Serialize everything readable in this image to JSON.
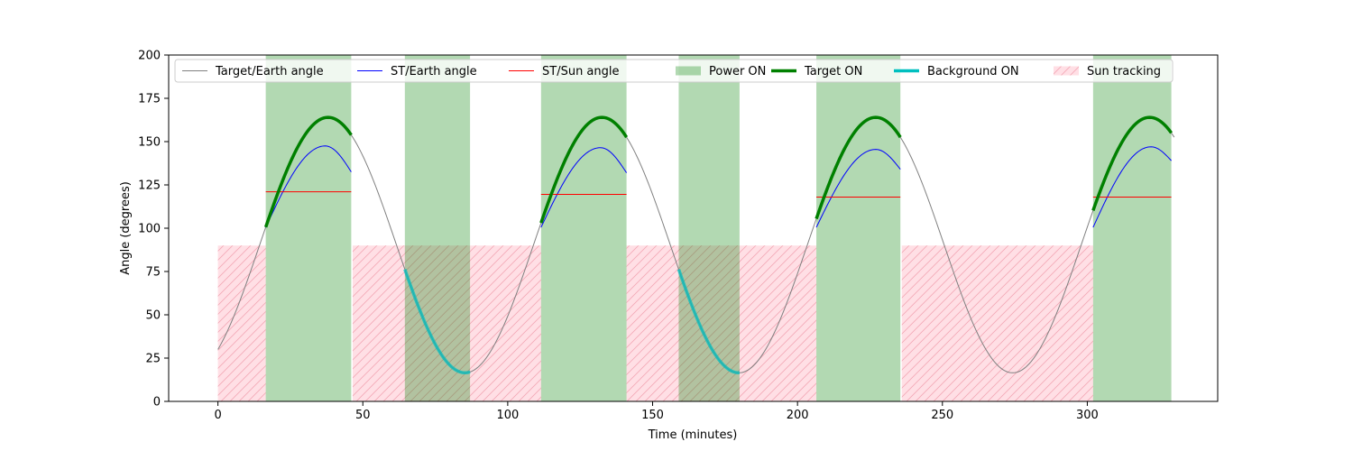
{
  "chart_data": {
    "type": "line",
    "title": "",
    "xlabel": "Time (minutes)",
    "ylabel": "Angle (degrees)",
    "xlim": [
      -17,
      345
    ],
    "ylim": [
      0,
      200
    ],
    "xticks": [
      0,
      50,
      100,
      150,
      200,
      250,
      300
    ],
    "yticks": [
      0,
      25,
      50,
      75,
      100,
      125,
      150,
      175,
      200
    ],
    "grid": false,
    "legend_position": "top",
    "colors": {
      "target_earth": "#808080",
      "st_earth": "#0000ff",
      "st_sun": "#ff0000",
      "power_on": "#008000",
      "target_on": "#008000",
      "background_on": "#00bfbf",
      "sun_tracking": "#ffc0cb"
    },
    "legend": [
      {
        "key": "target_earth",
        "label": "Target/Earth angle",
        "kind": "line"
      },
      {
        "key": "st_earth",
        "label": "ST/Earth angle",
        "kind": "line"
      },
      {
        "key": "st_sun",
        "label": "ST/Sun angle",
        "kind": "line"
      },
      {
        "key": "power_on",
        "label": "Power ON",
        "kind": "patch"
      },
      {
        "key": "target_on",
        "label": "Target ON",
        "kind": "thick"
      },
      {
        "key": "background_on",
        "label": "Background ON",
        "kind": "thick"
      },
      {
        "key": "sun_tracking",
        "label": "Sun tracking",
        "kind": "hatch"
      }
    ],
    "target_earth_wave": {
      "t_start": 0,
      "t_end": 330,
      "period": 94.5,
      "peak_t": 38,
      "max": 164,
      "min": 16.5
    },
    "power_on_intervals": [
      [
        16.5,
        46
      ],
      [
        64.5,
        87
      ],
      [
        111.5,
        141
      ],
      [
        159,
        180
      ],
      [
        206.5,
        235.5
      ],
      [
        302,
        329
      ]
    ],
    "sun_tracking_intervals": [
      [
        0,
        16.5
      ],
      [
        46.5,
        111.5
      ],
      [
        141,
        206.5
      ],
      [
        236,
        302
      ]
    ],
    "sun_tracking_level": 90,
    "target_on_intervals": [
      [
        16.5,
        46
      ],
      [
        111.5,
        141
      ],
      [
        206.5,
        235.5
      ],
      [
        302,
        329
      ]
    ],
    "background_on_intervals": [
      [
        64.5,
        87
      ],
      [
        159,
        180
      ]
    ],
    "st_earth_segments": [
      {
        "t": [
          16.5,
          46
        ],
        "start": 100.5,
        "peak": 147.5,
        "peak_t": 37,
        "end": 132.5
      },
      {
        "t": [
          111.5,
          141
        ],
        "start": 100.5,
        "peak": 146.5,
        "peak_t": 132,
        "end": 132
      },
      {
        "t": [
          206.5,
          235.5
        ],
        "start": 100.5,
        "peak": 145.5,
        "peak_t": 227,
        "end": 134
      },
      {
        "t": [
          302,
          329
        ],
        "start": 100.5,
        "peak": 147,
        "peak_t": 322,
        "end": 139
      }
    ],
    "st_sun_segments": [
      {
        "t": [
          16.5,
          46
        ],
        "value": 121
      },
      {
        "t": [
          111.5,
          141
        ],
        "value": 119.5
      },
      {
        "t": [
          206.5,
          235.5
        ],
        "value": 118
      },
      {
        "t": [
          302,
          329
        ],
        "value": 118
      }
    ]
  }
}
